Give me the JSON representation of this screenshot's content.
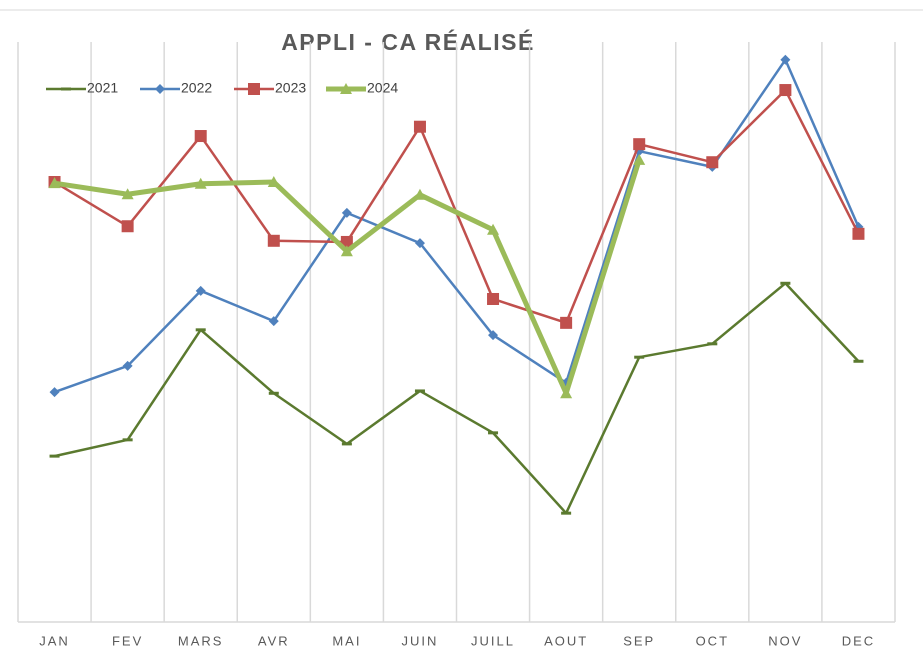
{
  "chart_data": {
    "type": "line",
    "title": "APPLI - CA RÉALISÉ",
    "categories": [
      "JAN",
      "FEV",
      "MARS",
      "AVR",
      "MAI",
      "JUIN",
      "JUILL",
      "AOUT",
      "SEP",
      "OCT",
      "NOV",
      "DEC"
    ],
    "ylim": [
      0,
      100
    ],
    "grid": "vertical",
    "legend": "top-left",
    "series": [
      {
        "name": "2021",
        "color": "#5b7a2f",
        "marker": "dash",
        "width": 2.5,
        "values": [
          28.5,
          31.3,
          50.2,
          39.3,
          30.6,
          39.7,
          32.5,
          18.7,
          45.5,
          47.8,
          58.2,
          44.8
        ]
      },
      {
        "name": "2022",
        "color": "#4f81bd",
        "marker": "diamond",
        "width": 2.5,
        "values": [
          39.5,
          44.0,
          56.9,
          51.7,
          70.3,
          65.1,
          49.3,
          41.1,
          80.9,
          78.2,
          96.6,
          67.9
        ]
      },
      {
        "name": "2023",
        "color": "#c0504d",
        "marker": "square",
        "width": 2.5,
        "values": [
          75.6,
          68.0,
          83.5,
          65.5,
          65.3,
          85.1,
          55.5,
          51.4,
          82.1,
          79.0,
          91.4,
          66.7
        ]
      },
      {
        "name": "2024",
        "color": "#9bbb59",
        "marker": "triangle",
        "width": 5,
        "values": [
          75.4,
          73.5,
          75.3,
          75.6,
          63.7,
          73.4,
          67.4,
          39.3,
          79.4,
          null,
          null,
          null
        ]
      }
    ]
  }
}
